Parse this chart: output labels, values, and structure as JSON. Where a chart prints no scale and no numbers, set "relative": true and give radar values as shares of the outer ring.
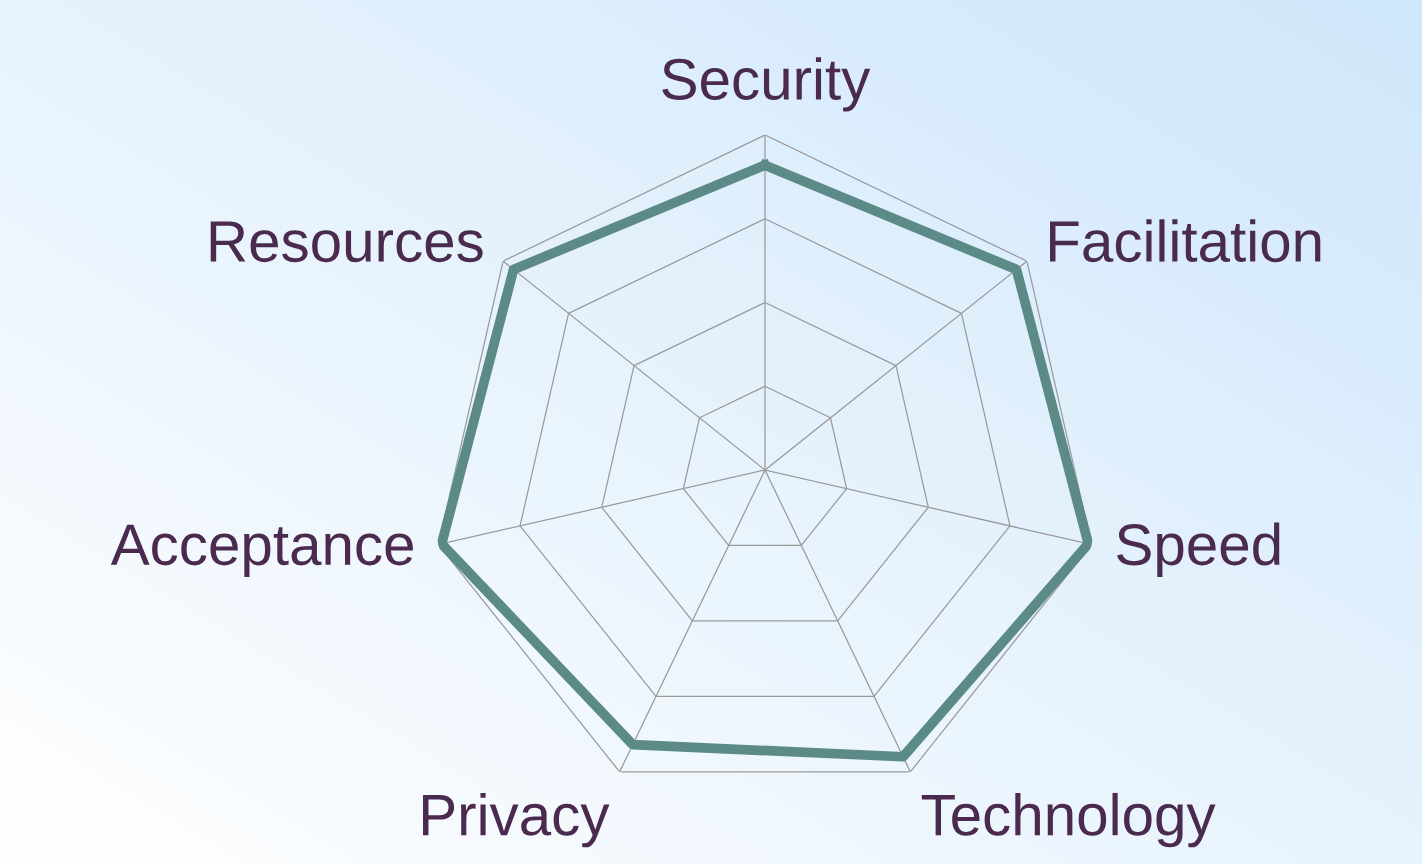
{
  "chart_data": {
    "type": "radar",
    "relative": true,
    "grid": true,
    "categories": [
      "Security",
      "Facilitation",
      "Speed",
      "Technology",
      "Privacy",
      "Acceptance",
      "Resources"
    ],
    "series": [
      {
        "color": "#5b8a87",
        "values": [
          0.91,
          0.96,
          0.99,
          0.95,
          0.91,
          0.99,
          0.96
        ]
      }
    ]
  }
}
